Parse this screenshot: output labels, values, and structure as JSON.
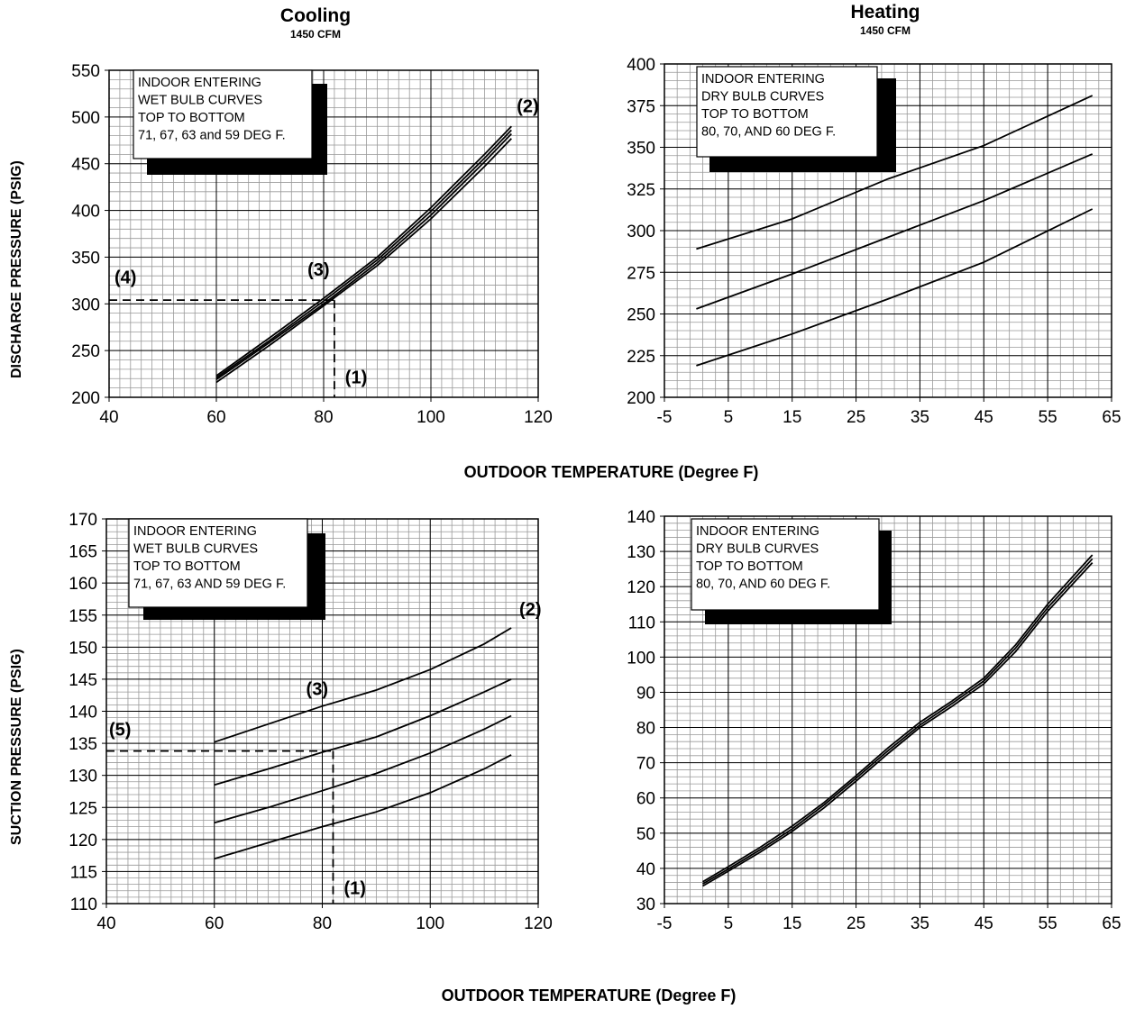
{
  "colors": {
    "ink": "#000000",
    "grid": "#999999",
    "background": "#ffffff"
  },
  "headers": {
    "cooling": {
      "title": "Cooling",
      "subtitle": "1450 CFM"
    },
    "heating": {
      "title": "Heating",
      "subtitle": "1450 CFM"
    }
  },
  "y_titles": {
    "discharge": "DISCHARGE PRESSURE (PSIG)",
    "suction": "SUCTION PRESSURE (PSIG)"
  },
  "x_titles": {
    "top": "OUTDOOR TEMPERATURE (Degree F)",
    "bottom": "OUTDOOR TEMPERATURE (Degree F)"
  },
  "chart_data": [
    {
      "id": "cooling-discharge",
      "type": "line",
      "xlim": [
        40,
        120
      ],
      "ylim": [
        200,
        550
      ],
      "xticks": [
        40,
        60,
        80,
        100,
        120
      ],
      "yticks": [
        200,
        250,
        300,
        350,
        400,
        450,
        500,
        550
      ],
      "minor_x": 2,
      "minor_y": 10,
      "grid": true,
      "legend_lines": [
        "INDOOR ENTERING",
        "WET BULB CURVES",
        "TOP TO BOTTOM",
        "71, 67, 63 and 59 DEG F."
      ],
      "series": [
        {
          "x": [
            60,
            70,
            80,
            90,
            100,
            110,
            115
          ],
          "y": [
            223,
            264,
            306,
            350,
            403,
            460,
            490
          ]
        },
        {
          "x": [
            60,
            70,
            80,
            90,
            100,
            110,
            115
          ],
          "y": [
            221,
            261,
            303,
            347,
            399,
            456,
            486
          ]
        },
        {
          "x": [
            60,
            70,
            80,
            90,
            100,
            110,
            115
          ],
          "y": [
            219,
            259,
            300,
            344,
            395,
            452,
            482
          ]
        },
        {
          "x": [
            60,
            70,
            80,
            90,
            100,
            110,
            115
          ],
          "y": [
            216,
            256,
            298,
            341,
            391,
            447,
            477
          ]
        }
      ],
      "guides": [
        {
          "x": 82,
          "y": 304
        }
      ],
      "annotations": [
        {
          "text": "(1)",
          "x": 84,
          "y": 215
        },
        {
          "text": "(2)",
          "x": 116,
          "y": 505
        },
        {
          "text": "(3)",
          "x": 77,
          "y": 330
        },
        {
          "text": "(4)",
          "x": 41,
          "y": 322
        }
      ]
    },
    {
      "id": "heating-discharge",
      "type": "line",
      "xlim": [
        -5,
        65
      ],
      "ylim": [
        200,
        400
      ],
      "xticks": [
        -5,
        5,
        15,
        25,
        35,
        45,
        55,
        65
      ],
      "yticks": [
        200,
        225,
        250,
        275,
        300,
        325,
        350,
        375,
        400
      ],
      "minor_x": 2,
      "minor_y": 5,
      "grid": true,
      "legend_lines": [
        "INDOOR ENTERING",
        "DRY BULB CURVES",
        "TOP TO BOTTOM",
        "80, 70, AND 60 DEG F."
      ],
      "series": [
        {
          "x": [
            0,
            15,
            30,
            45,
            62
          ],
          "y": [
            289,
            307,
            331,
            351,
            381
          ]
        },
        {
          "x": [
            0,
            15,
            30,
            45,
            62
          ],
          "y": [
            253,
            274,
            296,
            318,
            346
          ]
        },
        {
          "x": [
            0,
            15,
            30,
            45,
            62
          ],
          "y": [
            219,
            238,
            259,
            281,
            313
          ]
        }
      ],
      "guides": [],
      "annotations": []
    },
    {
      "id": "cooling-suction",
      "type": "line",
      "xlim": [
        40,
        120
      ],
      "ylim": [
        110,
        170
      ],
      "xticks": [
        40,
        60,
        80,
        100,
        120
      ],
      "yticks": [
        110,
        115,
        120,
        125,
        130,
        135,
        140,
        145,
        150,
        155,
        160,
        165,
        170
      ],
      "minor_x": 2,
      "minor_y": 1,
      "grid": true,
      "legend_lines": [
        "INDOOR ENTERING",
        "WET BULB CURVES",
        "TOP TO BOTTOM",
        "71, 67, 63 AND 59 DEG F."
      ],
      "series": [
        {
          "x": [
            60,
            70,
            80,
            90,
            100,
            110,
            115
          ],
          "y": [
            135.2,
            138.0,
            140.8,
            143.3,
            146.5,
            150.5,
            153.0
          ]
        },
        {
          "x": [
            60,
            70,
            80,
            90,
            100,
            110,
            115
          ],
          "y": [
            128.5,
            131.0,
            133.6,
            136.0,
            139.3,
            143.0,
            145.0
          ]
        },
        {
          "x": [
            60,
            70,
            80,
            90,
            100,
            110,
            115
          ],
          "y": [
            122.6,
            125.0,
            127.6,
            130.3,
            133.5,
            137.2,
            139.3
          ]
        },
        {
          "x": [
            60,
            70,
            80,
            90,
            100,
            110,
            115
          ],
          "y": [
            117.0,
            119.5,
            122.0,
            124.3,
            127.3,
            131.0,
            133.2
          ]
        }
      ],
      "guides": [
        {
          "x": 82,
          "y": 133.8
        }
      ],
      "annotations": [
        {
          "text": "(1)",
          "x": 84,
          "y": 111.5
        },
        {
          "text": "(2)",
          "x": 116.5,
          "y": 155
        },
        {
          "text": "(3)",
          "x": 77,
          "y": 142.5
        },
        {
          "text": "(5)",
          "x": 40.5,
          "y": 136.2
        }
      ]
    },
    {
      "id": "heating-suction",
      "type": "line",
      "xlim": [
        -5,
        65
      ],
      "ylim": [
        30,
        140
      ],
      "xticks": [
        -5,
        5,
        15,
        25,
        35,
        45,
        55,
        65
      ],
      "yticks": [
        30,
        40,
        50,
        60,
        70,
        80,
        90,
        100,
        110,
        120,
        130,
        140
      ],
      "minor_x": 2,
      "minor_y": 2,
      "grid": true,
      "legend_lines": [
        "INDOOR ENTERING",
        "DRY BULB CURVES",
        "TOP TO BOTTOM",
        "80, 70, AND 60 DEG F."
      ],
      "series": [
        {
          "x": [
            1,
            5,
            10,
            15,
            20,
            25,
            30,
            35,
            40,
            45,
            50,
            55,
            62
          ],
          "y": [
            36.2,
            40.5,
            46.0,
            52.0,
            58.7,
            66.3,
            74.2,
            81.5,
            87.5,
            94.0,
            103.5,
            115.0,
            129.0
          ]
        },
        {
          "x": [
            1,
            5,
            10,
            15,
            20,
            25,
            30,
            35,
            40,
            45,
            50,
            55,
            62
          ],
          "y": [
            35.6,
            39.8,
            45.3,
            51.2,
            58.0,
            65.6,
            73.4,
            80.7,
            86.8,
            93.2,
            102.6,
            114.0,
            127.9
          ]
        },
        {
          "x": [
            1,
            5,
            10,
            15,
            20,
            25,
            30,
            35,
            40,
            45,
            50,
            55,
            62
          ],
          "y": [
            35.0,
            39.2,
            44.6,
            50.5,
            57.2,
            64.8,
            72.6,
            80.0,
            86.0,
            92.4,
            101.6,
            113.0,
            126.8
          ]
        }
      ],
      "guides": [],
      "annotations": []
    }
  ]
}
